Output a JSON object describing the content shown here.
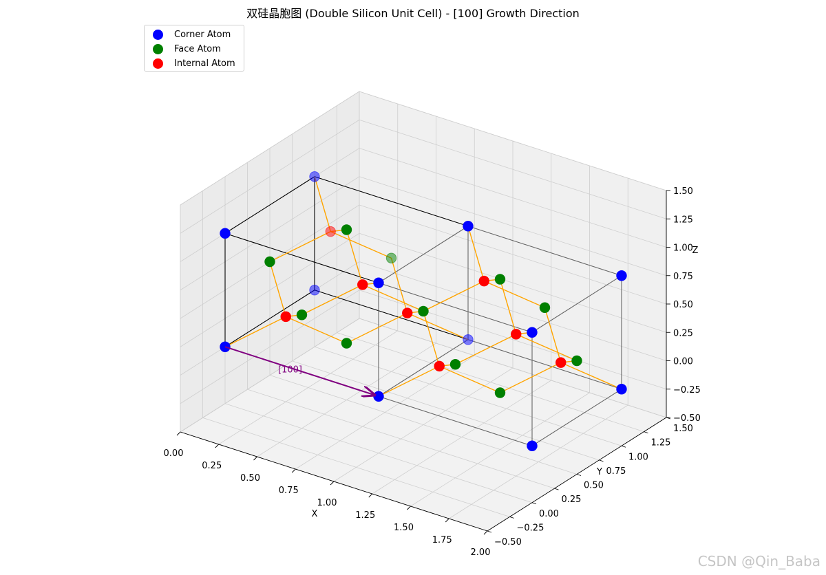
{
  "title": "双硅晶胞图 (Double Silicon Unit Cell) - [100] Growth Direction",
  "watermark": "CSDN @Qin_Baba",
  "colors": {
    "corner": "#0000ff",
    "face": "#008000",
    "internal": "#ff0000",
    "bond": "#ffa500",
    "arrow": "#800080",
    "cell_edge": "#000000"
  },
  "legend": [
    {
      "label": "Corner Atom",
      "color": "#0000ff"
    },
    {
      "label": "Face Atom",
      "color": "#008000"
    },
    {
      "label": "Internal Atom",
      "color": "#ff0000"
    }
  ],
  "chart_data": {
    "type": "scatter",
    "projection": "3d",
    "title": "双硅晶胞图 (Double Silicon Unit Cell) - [100] Growth Direction",
    "xlabel": "X",
    "ylabel": "Y",
    "zlabel": "Z",
    "xlim": [
      0,
      2
    ],
    "ylim": [
      -0.5,
      1.5
    ],
    "zlim": [
      -0.5,
      1.5
    ],
    "xticks": [
      "0.00",
      "0.25",
      "0.50",
      "0.75",
      "1.00",
      "1.25",
      "1.50",
      "1.75",
      "2.00"
    ],
    "yticks": [
      "−0.50",
      "−0.25",
      "0.00",
      "0.25",
      "0.50",
      "0.75",
      "1.00",
      "1.25",
      "1.50"
    ],
    "zticks": [
      "−0.50",
      "−0.25",
      "0.00",
      "0.25",
      "0.50",
      "0.75",
      "1.00",
      "1.25",
      "1.50"
    ],
    "grid": true,
    "legend_position": "top-left",
    "series": [
      {
        "name": "Corner Atom",
        "color": "#0000ff",
        "points": [
          [
            0,
            0,
            0
          ],
          [
            1,
            0,
            0
          ],
          [
            0,
            1,
            0
          ],
          [
            1,
            1,
            0
          ],
          [
            0,
            0,
            1
          ],
          [
            1,
            0,
            1
          ],
          [
            0,
            1,
            1
          ],
          [
            1,
            1,
            1
          ],
          [
            2,
            0,
            0
          ],
          [
            2,
            1,
            0
          ],
          [
            2,
            0,
            1
          ],
          [
            2,
            1,
            1
          ]
        ]
      },
      {
        "name": "Face Atom",
        "color": "#008000",
        "points": [
          [
            0.5,
            0.5,
            0
          ],
          [
            0.5,
            0.5,
            1
          ],
          [
            0.5,
            0,
            0.5
          ],
          [
            0.5,
            1,
            0.5
          ],
          [
            0,
            0.5,
            0.5
          ],
          [
            1,
            0.5,
            0.5
          ],
          [
            1.5,
            0.5,
            0
          ],
          [
            1.5,
            0.5,
            1
          ],
          [
            1.5,
            0,
            0.5
          ],
          [
            1.5,
            1,
            0.5
          ],
          [
            2,
            0.5,
            0.5
          ]
        ]
      },
      {
        "name": "Internal Atom",
        "color": "#ff0000",
        "points": [
          [
            0.25,
            0.25,
            0.25
          ],
          [
            0.75,
            0.75,
            0.25
          ],
          [
            0.75,
            0.25,
            0.75
          ],
          [
            0.25,
            0.75,
            0.75
          ],
          [
            1.25,
            0.25,
            0.25
          ],
          [
            1.75,
            0.75,
            0.25
          ],
          [
            1.75,
            0.25,
            0.75
          ],
          [
            1.25,
            0.75,
            0.75
          ]
        ]
      }
    ],
    "bonds": [
      [
        [
          0.25,
          0.25,
          0.25
        ],
        [
          0,
          0,
          0
        ]
      ],
      [
        [
          0.25,
          0.25,
          0.25
        ],
        [
          0.5,
          0.5,
          0
        ]
      ],
      [
        [
          0.25,
          0.25,
          0.25
        ],
        [
          0.5,
          0,
          0.5
        ]
      ],
      [
        [
          0.25,
          0.25,
          0.25
        ],
        [
          0,
          0.5,
          0.5
        ]
      ],
      [
        [
          0.75,
          0.75,
          0.25
        ],
        [
          1,
          1,
          0
        ]
      ],
      [
        [
          0.75,
          0.75,
          0.25
        ],
        [
          0.5,
          0.5,
          0
        ]
      ],
      [
        [
          0.75,
          0.75,
          0.25
        ],
        [
          1,
          0.5,
          0.5
        ]
      ],
      [
        [
          0.75,
          0.75,
          0.25
        ],
        [
          0.5,
          1,
          0.5
        ]
      ],
      [
        [
          0.75,
          0.25,
          0.75
        ],
        [
          1,
          0,
          1
        ]
      ],
      [
        [
          0.75,
          0.25,
          0.75
        ],
        [
          0.5,
          0,
          0.5
        ]
      ],
      [
        [
          0.75,
          0.25,
          0.75
        ],
        [
          1,
          0.5,
          0.5
        ]
      ],
      [
        [
          0.75,
          0.25,
          0.75
        ],
        [
          0.5,
          0.5,
          1
        ]
      ],
      [
        [
          0.25,
          0.75,
          0.75
        ],
        [
          0,
          1,
          1
        ]
      ],
      [
        [
          0.25,
          0.75,
          0.75
        ],
        [
          0,
          0.5,
          0.5
        ]
      ],
      [
        [
          0.25,
          0.75,
          0.75
        ],
        [
          0.5,
          1,
          0.5
        ]
      ],
      [
        [
          0.25,
          0.75,
          0.75
        ],
        [
          0.5,
          0.5,
          1
        ]
      ],
      [
        [
          1.25,
          0.25,
          0.25
        ],
        [
          1,
          0,
          0
        ]
      ],
      [
        [
          1.25,
          0.25,
          0.25
        ],
        [
          1.5,
          0.5,
          0
        ]
      ],
      [
        [
          1.25,
          0.25,
          0.25
        ],
        [
          1.5,
          0,
          0.5
        ]
      ],
      [
        [
          1.25,
          0.25,
          0.25
        ],
        [
          1,
          0.5,
          0.5
        ]
      ],
      [
        [
          1.75,
          0.75,
          0.25
        ],
        [
          2,
          1,
          0
        ]
      ],
      [
        [
          1.75,
          0.75,
          0.25
        ],
        [
          1.5,
          0.5,
          0
        ]
      ],
      [
        [
          1.75,
          0.75,
          0.25
        ],
        [
          2,
          0.5,
          0.5
        ]
      ],
      [
        [
          1.75,
          0.75,
          0.25
        ],
        [
          1.5,
          1,
          0.5
        ]
      ],
      [
        [
          1.75,
          0.25,
          0.75
        ],
        [
          2,
          0,
          1
        ]
      ],
      [
        [
          1.75,
          0.25,
          0.75
        ],
        [
          1.5,
          0,
          0.5
        ]
      ],
      [
        [
          1.75,
          0.25,
          0.75
        ],
        [
          2,
          0.5,
          0.5
        ]
      ],
      [
        [
          1.75,
          0.25,
          0.75
        ],
        [
          1.5,
          0.5,
          1
        ]
      ],
      [
        [
          1.25,
          0.75,
          0.75
        ],
        [
          1,
          1,
          1
        ]
      ],
      [
        [
          1.25,
          0.75,
          0.75
        ],
        [
          1,
          0.5,
          0.5
        ]
      ],
      [
        [
          1.25,
          0.75,
          0.75
        ],
        [
          1.5,
          1,
          0.5
        ]
      ],
      [
        [
          1.25,
          0.75,
          0.75
        ],
        [
          1.5,
          0.5,
          1
        ]
      ]
    ],
    "cell_edges": [
      [
        [
          0,
          0,
          0
        ],
        [
          1,
          0,
          0
        ]
      ],
      [
        [
          0,
          1,
          0
        ],
        [
          1,
          1,
          0
        ]
      ],
      [
        [
          0,
          0,
          1
        ],
        [
          1,
          0,
          1
        ]
      ],
      [
        [
          0,
          1,
          1
        ],
        [
          1,
          1,
          1
        ]
      ],
      [
        [
          0,
          0,
          0
        ],
        [
          0,
          1,
          0
        ]
      ],
      [
        [
          1,
          0,
          0
        ],
        [
          1,
          1,
          0
        ]
      ],
      [
        [
          0,
          0,
          1
        ],
        [
          0,
          1,
          1
        ]
      ],
      [
        [
          1,
          0,
          1
        ],
        [
          1,
          1,
          1
        ]
      ],
      [
        [
          0,
          0,
          0
        ],
        [
          0,
          0,
          1
        ]
      ],
      [
        [
          1,
          0,
          0
        ],
        [
          1,
          0,
          1
        ]
      ],
      [
        [
          0,
          1,
          0
        ],
        [
          0,
          1,
          1
        ]
      ],
      [
        [
          1,
          1,
          0
        ],
        [
          1,
          1,
          1
        ]
      ],
      [
        [
          1,
          0,
          0
        ],
        [
          2,
          0,
          0
        ]
      ],
      [
        [
          1,
          1,
          0
        ],
        [
          2,
          1,
          0
        ]
      ],
      [
        [
          1,
          0,
          1
        ],
        [
          2,
          0,
          1
        ]
      ],
      [
        [
          1,
          1,
          1
        ],
        [
          2,
          1,
          1
        ]
      ],
      [
        [
          2,
          0,
          0
        ],
        [
          2,
          1,
          0
        ]
      ],
      [
        [
          2,
          0,
          1
        ],
        [
          2,
          1,
          1
        ]
      ],
      [
        [
          2,
          0,
          0
        ],
        [
          2,
          0,
          1
        ]
      ],
      [
        [
          2,
          1,
          0
        ],
        [
          2,
          1,
          1
        ]
      ]
    ],
    "annotation": {
      "text": "[100]",
      "from": [
        0,
        0,
        0
      ],
      "to": [
        1,
        0,
        0
      ]
    }
  }
}
